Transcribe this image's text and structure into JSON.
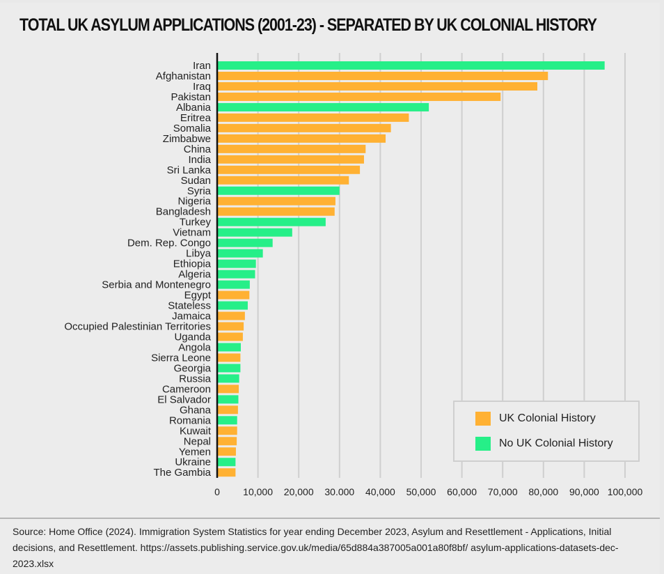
{
  "chart_data": {
    "type": "bar",
    "orientation": "horizontal",
    "title": "TOTAL UK ASYLUM APPLICATIONS (2001-23) - SEPARATED BY UK COLONIAL HISTORY",
    "xlabel": "",
    "ylabel": "",
    "xlim": [
      0,
      100000
    ],
    "grid": true,
    "legend_position": "bottom-right",
    "x_ticks": [
      "0",
      "10,000",
      "20,000",
      "30.000",
      "40,000",
      "50,000",
      "60,000",
      "70,000",
      "80,000",
      "90,000",
      "100,000"
    ],
    "x_tick_values": [
      0,
      10000,
      20000,
      30000,
      40000,
      50000,
      60000,
      70000,
      80000,
      90000,
      100000
    ],
    "colors": {
      "colonial": "#ffb133",
      "non_colonial": "#26ef88"
    },
    "legend": [
      {
        "key": "colonial",
        "label": "UK Colonial History"
      },
      {
        "key": "non_colonial",
        "label": "No UK Colonial History"
      }
    ],
    "categories": [
      "Iran",
      "Afghanistan",
      "Iraq",
      "Pakistan",
      "Albania",
      "Eritrea",
      "Somalia",
      "Zimbabwe",
      "China",
      "India",
      "Sri Lanka",
      "Sudan",
      "Syria",
      "Nigeria",
      "Bangladesh",
      "Turkey",
      "Vietnam",
      "Dem. Rep. Congo",
      "Libya",
      "Ethiopia",
      "Algeria",
      "Serbia and Montenegro",
      "Egypt",
      "Stateless",
      "Jamaica",
      "Occupied Palestinian Territories",
      "Uganda",
      "Angola",
      "Sierra Leone",
      "Georgia",
      "Russia",
      "Cameroon",
      "El Salvador",
      "Ghana",
      "Romania",
      "Kuwait",
      "Nepal",
      "Yemen",
      "Ukraine",
      "The Gambia"
    ],
    "values": [
      95000,
      81100,
      78500,
      69500,
      51900,
      47000,
      42600,
      41300,
      36400,
      36000,
      35000,
      32300,
      30000,
      29000,
      28800,
      26600,
      18400,
      13600,
      11200,
      9500,
      9300,
      8000,
      7900,
      7500,
      6800,
      6500,
      6300,
      5800,
      5700,
      5700,
      5400,
      5300,
      5200,
      5100,
      4900,
      4900,
      4800,
      4600,
      4500,
      4500
    ],
    "groups": [
      "non_colonial",
      "colonial",
      "colonial",
      "colonial",
      "non_colonial",
      "colonial",
      "colonial",
      "colonial",
      "colonial",
      "colonial",
      "colonial",
      "colonial",
      "non_colonial",
      "colonial",
      "colonial",
      "non_colonial",
      "non_colonial",
      "non_colonial",
      "non_colonial",
      "non_colonial",
      "non_colonial",
      "non_colonial",
      "colonial",
      "non_colonial",
      "colonial",
      "colonial",
      "colonial",
      "non_colonial",
      "colonial",
      "non_colonial",
      "non_colonial",
      "colonial",
      "non_colonial",
      "colonial",
      "non_colonial",
      "colonial",
      "colonial",
      "colonial",
      "non_colonial",
      "colonial"
    ]
  },
  "source": "Source: Home Office (2024). Immigration System Statistics for year ending December 2023, Asylum and Resettlement - Applications, Initial decisions, and Resettlement. https://assets.publishing.service.gov.uk/media/65d884a387005a001a80f8bf/ asylum-applications-datasets-dec-2023.xlsx"
}
